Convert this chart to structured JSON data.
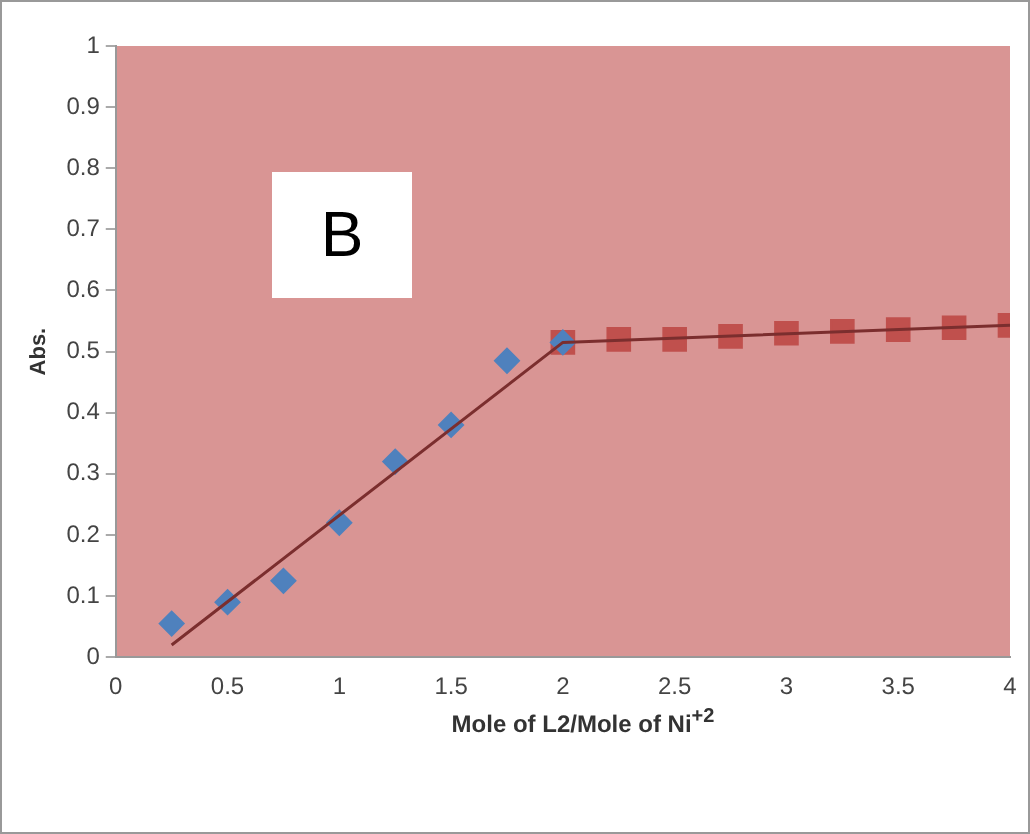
{
  "chart_data": {
    "type": "scatter",
    "xlabel": "Mole of L2/Mole of Ni$^{+2}$",
    "ylabel": "Abs.",
    "annotations": [
      "B"
    ],
    "xlim": [
      0,
      4
    ],
    "xticks": [
      0,
      0.5,
      1,
      1.5,
      2,
      2.5,
      3,
      3.5,
      4
    ],
    "ylim": [
      0,
      1
    ],
    "yticks": [
      0,
      0.1,
      0.2,
      0.3,
      0.4,
      0.5,
      0.6,
      0.7,
      0.8,
      0.9,
      1
    ],
    "grid": false,
    "legend": false,
    "series": [
      {
        "type": "scatter",
        "marker": "diamond",
        "color": "#4f81bd",
        "x": [
          0.25,
          0.5,
          0.75,
          1,
          1.25,
          1.5,
          1.75,
          2
        ],
        "values": [
          0.055,
          0.09,
          0.125,
          0.22,
          0.32,
          0.38,
          0.485,
          0.515
        ]
      },
      {
        "type": "scatter",
        "marker": "square",
        "color": "#c0504d",
        "x": [
          2,
          2.25,
          2.5,
          2.75,
          3,
          3.25,
          3.5,
          3.75,
          4
        ],
        "values": [
          0.515,
          0.52,
          0.52,
          0.525,
          0.53,
          0.533,
          0.536,
          0.539,
          0.543
        ]
      },
      {
        "type": "line",
        "marker": "none",
        "color": "#7b2e2e",
        "x": [
          0.25,
          2,
          4
        ],
        "values": [
          0.02,
          0.515,
          0.543
        ]
      }
    ]
  }
}
